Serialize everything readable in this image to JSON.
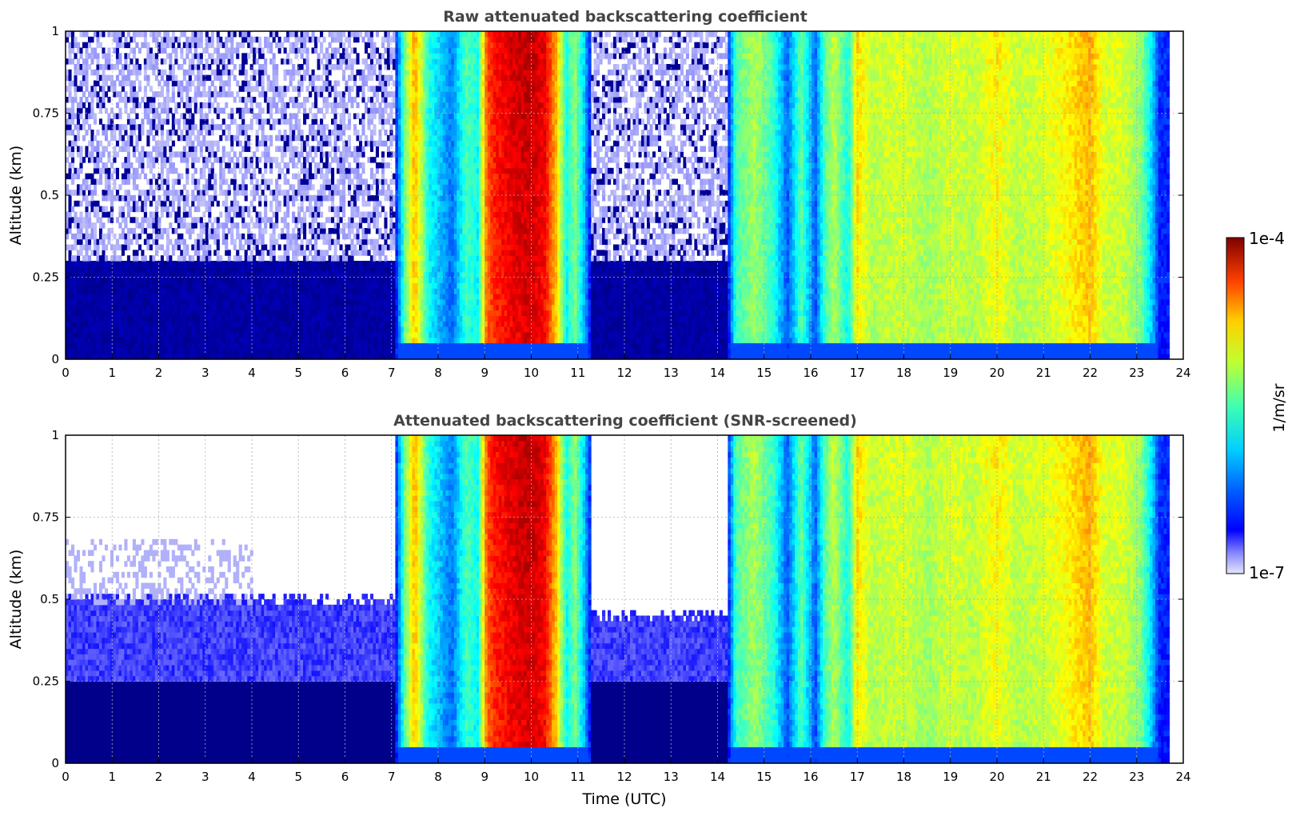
{
  "chart_data": [
    {
      "type": "heatmap",
      "title": "Raw attenuated backscattering coefficient",
      "xlabel": "",
      "ylabel": "Altitude (km)",
      "xlim": [
        0,
        24
      ],
      "ylim": [
        0,
        1
      ],
      "xticks": [
        "0",
        "1",
        "2",
        "3",
        "4",
        "5",
        "6",
        "7",
        "8",
        "9",
        "10",
        "11",
        "12",
        "13",
        "14",
        "15",
        "16",
        "17",
        "18",
        "19",
        "20",
        "21",
        "22",
        "23",
        "24"
      ],
      "yticks": [
        "0",
        "0.25",
        "0.5",
        "0.75",
        "1"
      ],
      "grid": true,
      "screened": false
    },
    {
      "type": "heatmap",
      "title": "Attenuated backscattering coefficient (SNR-screened)",
      "xlabel": "Time (UTC)",
      "ylabel": "Altitude (km)",
      "xlim": [
        0,
        24
      ],
      "ylim": [
        0,
        1
      ],
      "xticks": [
        "0",
        "1",
        "2",
        "3",
        "4",
        "5",
        "6",
        "7",
        "8",
        "9",
        "10",
        "11",
        "12",
        "13",
        "14",
        "15",
        "16",
        "17",
        "18",
        "19",
        "20",
        "21",
        "22",
        "23",
        "24"
      ],
      "yticks": [
        "0",
        "0.25",
        "0.5",
        "0.75",
        "1"
      ],
      "grid": true,
      "screened": true
    }
  ],
  "colorbar": {
    "label": "1/m/sr",
    "max_label": "1e-4",
    "min_label": "1e-7",
    "colormap": "jet",
    "log_min": -7,
    "log_max": -4
  },
  "profile": {
    "hours": [
      0,
      7.05,
      7.3,
      7.5,
      7.8,
      8.0,
      8.3,
      8.6,
      8.85,
      9.05,
      9.2,
      9.6,
      10.0,
      10.3,
      10.55,
      10.75,
      10.95,
      11.15,
      11.3,
      14.2,
      14.4,
      14.8,
      15.2,
      15.5,
      15.8,
      16.1,
      16.3,
      16.5,
      16.8,
      17.0,
      17.3,
      18.0,
      18.5,
      19.0,
      19.5,
      20.0,
      20.4,
      21.0,
      21.5,
      22.0,
      22.3,
      22.7,
      23.1,
      23.3,
      23.5,
      23.7
    ],
    "values": [
      0.18,
      0.18,
      0.55,
      0.72,
      0.45,
      0.4,
      0.32,
      0.5,
      0.45,
      0.8,
      0.85,
      0.9,
      0.92,
      0.88,
      0.7,
      0.45,
      0.55,
      0.38,
      0.2,
      0.2,
      0.5,
      0.58,
      0.48,
      0.3,
      0.52,
      0.3,
      0.5,
      0.6,
      0.45,
      0.68,
      0.6,
      0.62,
      0.58,
      0.62,
      0.6,
      0.66,
      0.6,
      0.62,
      0.66,
      0.72,
      0.62,
      0.62,
      0.55,
      0.42,
      0.25,
      0.25
    ]
  }
}
